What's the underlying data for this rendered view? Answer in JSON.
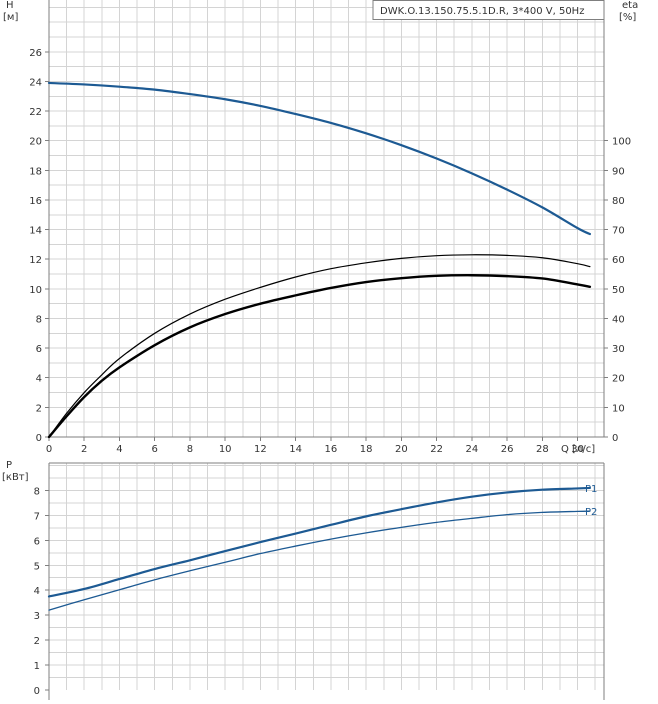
{
  "header": {
    "info_box": "DWK.O.13.150.75.5.1D.R, 3*400 V, 50Hz"
  },
  "chart_data": [
    {
      "type": "line",
      "title": "DWK.O.13.150.75.5.1D.R, 3*400 V, 50Hz",
      "xlabel": "Q [л/с]",
      "ylabel": "H [м]",
      "y2label": "eta [%]",
      "xlim": [
        0,
        31.5
      ],
      "ylim": [
        0,
        29.5
      ],
      "y2lim": [
        0,
        147.5
      ],
      "x_ticks": [
        0,
        2,
        4,
        6,
        8,
        10,
        12,
        14,
        16,
        18,
        20,
        22,
        24,
        26,
        28,
        30
      ],
      "y_ticks": [
        0,
        2,
        4,
        6,
        8,
        10,
        12,
        14,
        16,
        18,
        20,
        22,
        24,
        26
      ],
      "y2_ticks": [
        0,
        10,
        20,
        30,
        40,
        50,
        60,
        70,
        80,
        90,
        100
      ],
      "grid": true,
      "colors": {
        "head": "#1d5a93",
        "eta": "#000000"
      },
      "series": [
        {
          "name": "H",
          "axis": "left",
          "color": "#1d5a93",
          "width": 2.2,
          "x": [
            0,
            2,
            4,
            6,
            8,
            10,
            12,
            14,
            16,
            18,
            20,
            22,
            24,
            26,
            28,
            30,
            30.7
          ],
          "y": [
            23.9,
            23.8,
            23.65,
            23.45,
            23.15,
            22.8,
            22.35,
            21.8,
            21.2,
            20.5,
            19.7,
            18.8,
            17.8,
            16.7,
            15.5,
            14.1,
            13.7
          ]
        },
        {
          "name": "eta-1",
          "axis": "right",
          "color": "#000000",
          "width": 1.2,
          "x": [
            0,
            1,
            2,
            3,
            4,
            6,
            8,
            10,
            12,
            14,
            16,
            18,
            20,
            22,
            24,
            26,
            28,
            30,
            30.7
          ],
          "y": [
            0,
            8,
            15,
            21,
            26.5,
            35,
            41.5,
            46.5,
            50.5,
            54,
            56.8,
            58.8,
            60.3,
            61.2,
            61.5,
            61.3,
            60.5,
            58.5,
            57.5
          ]
        },
        {
          "name": "eta-2",
          "axis": "right",
          "color": "#000000",
          "width": 2.4,
          "x": [
            0,
            1,
            2,
            3,
            4,
            6,
            8,
            10,
            12,
            14,
            16,
            18,
            20,
            22,
            24,
            26,
            28,
            30,
            30.7
          ],
          "y": [
            0,
            7,
            13.5,
            19,
            23.5,
            31,
            37,
            41.5,
            45,
            47.8,
            50.3,
            52.3,
            53.6,
            54.4,
            54.6,
            54.3,
            53.5,
            51.5,
            50.7
          ]
        }
      ]
    },
    {
      "type": "line",
      "xlabel": "",
      "ylabel": "P [кВт]",
      "xlim": [
        0,
        31.5
      ],
      "ylim": [
        0,
        9.1
      ],
      "x_ticks": [
        0,
        2,
        4,
        6,
        8,
        10,
        12,
        14,
        16,
        18,
        20,
        22,
        24,
        26,
        28,
        30
      ],
      "y_ticks": [
        0,
        1,
        2,
        3,
        4,
        5,
        6,
        7,
        8
      ],
      "grid": true,
      "series": [
        {
          "name": "P1",
          "color": "#1d5a93",
          "width": 2.2,
          "x": [
            0,
            2,
            4,
            6,
            8,
            10,
            12,
            14,
            16,
            18,
            20,
            22,
            24,
            26,
            28,
            30,
            30.7
          ],
          "y": [
            3.75,
            4.05,
            4.45,
            4.85,
            5.2,
            5.57,
            5.93,
            6.27,
            6.62,
            6.96,
            7.25,
            7.52,
            7.75,
            7.92,
            8.03,
            8.08,
            8.1
          ]
        },
        {
          "name": "P2",
          "color": "#1d5a93",
          "width": 1.3,
          "x": [
            0,
            2,
            4,
            6,
            8,
            10,
            12,
            14,
            16,
            18,
            20,
            22,
            24,
            26,
            28,
            30,
            30.7
          ],
          "y": [
            3.2,
            3.62,
            4.02,
            4.42,
            4.78,
            5.12,
            5.47,
            5.77,
            6.05,
            6.3,
            6.52,
            6.72,
            6.88,
            7.03,
            7.12,
            7.16,
            7.17
          ]
        }
      ]
    }
  ]
}
